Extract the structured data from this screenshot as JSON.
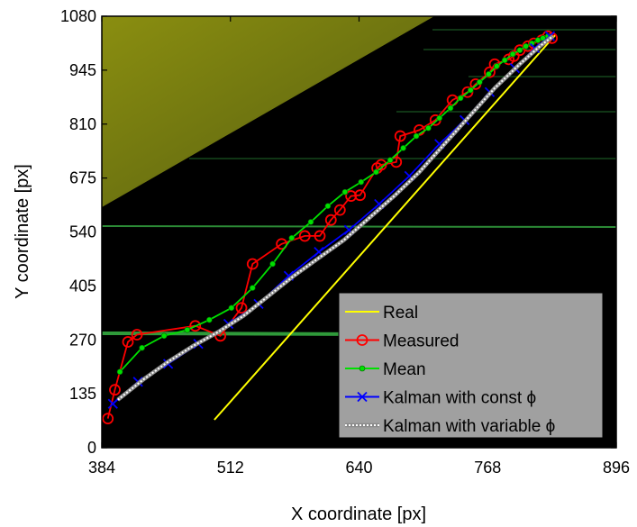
{
  "chart_data": {
    "type": "line",
    "xlabel": "X coordinate [px]",
    "ylabel": "Y coordinate [px]",
    "xlim": [
      384,
      896
    ],
    "ylim": [
      0,
      1080
    ],
    "xticks": [
      384,
      512,
      640,
      768,
      896
    ],
    "yticks": [
      0,
      135,
      270,
      405,
      540,
      675,
      810,
      945,
      1080
    ],
    "legend_position": "bottom-right",
    "background": "image of road scene (dark with green lane lines and yellow-green sky wedge)",
    "series": [
      {
        "name": "Real",
        "color": "#ffff00",
        "marker": "none",
        "x": [
          496,
          836
        ],
        "y": [
          70,
          1035
        ]
      },
      {
        "name": "Measured",
        "color": "#ff0000",
        "marker": "circle",
        "x": [
          390,
          397,
          410,
          419,
          477,
          502,
          523,
          534,
          563,
          586,
          601,
          612,
          621,
          632,
          641,
          658,
          662,
          677,
          681,
          700,
          716,
          733,
          748,
          756,
          770,
          775,
          789,
          794,
          800,
          808,
          814,
          822,
          828,
          832
        ],
        "y": [
          73,
          145,
          265,
          283,
          305,
          280,
          350,
          460,
          510,
          530,
          530,
          570,
          595,
          630,
          632,
          700,
          708,
          715,
          780,
          795,
          820,
          870,
          890,
          910,
          940,
          960,
          972,
          980,
          995,
          1005,
          1012,
          1020,
          1030,
          1025
        ]
      },
      {
        "name": "Mean",
        "color": "#00e000",
        "marker": "dot",
        "x": [
          402,
          424,
          446,
          469,
          491,
          513,
          534,
          554,
          573,
          592,
          609,
          626,
          642,
          657,
          671,
          684,
          697,
          709,
          720,
          731,
          741,
          751,
          760,
          769,
          777,
          785,
          793,
          800,
          806,
          812,
          818,
          823,
          828
        ],
        "y": [
          190,
          250,
          280,
          295,
          320,
          350,
          400,
          460,
          525,
          565,
          605,
          640,
          665,
          690,
          720,
          750,
          780,
          800,
          825,
          850,
          875,
          895,
          915,
          935,
          955,
          970,
          985,
          995,
          1005,
          1012,
          1020,
          1025,
          1030
        ]
      },
      {
        "name": "Kalman with const ϕ",
        "color": "#0000ff",
        "marker": "x",
        "x": [
          395,
          420,
          450,
          480,
          510,
          540,
          570,
          600,
          630,
          660,
          690,
          720,
          745,
          770,
          795,
          815,
          830
        ],
        "y": [
          110,
          165,
          210,
          260,
          310,
          360,
          430,
          490,
          545,
          610,
          680,
          760,
          820,
          890,
          950,
          1000,
          1030
        ]
      },
      {
        "name": "Kalman with variable ϕ",
        "color": "#ffffff",
        "marker": "none",
        "x": [
          400,
          425,
          450,
          475,
          500,
          525,
          550,
          575,
          600,
          625,
          650,
          675,
          700,
          725,
          750,
          775,
          800,
          820,
          833
        ],
        "y": [
          120,
          170,
          215,
          255,
          290,
          330,
          380,
          430,
          475,
          520,
          575,
          630,
          690,
          760,
          830,
          900,
          960,
          1005,
          1030
        ]
      }
    ]
  }
}
